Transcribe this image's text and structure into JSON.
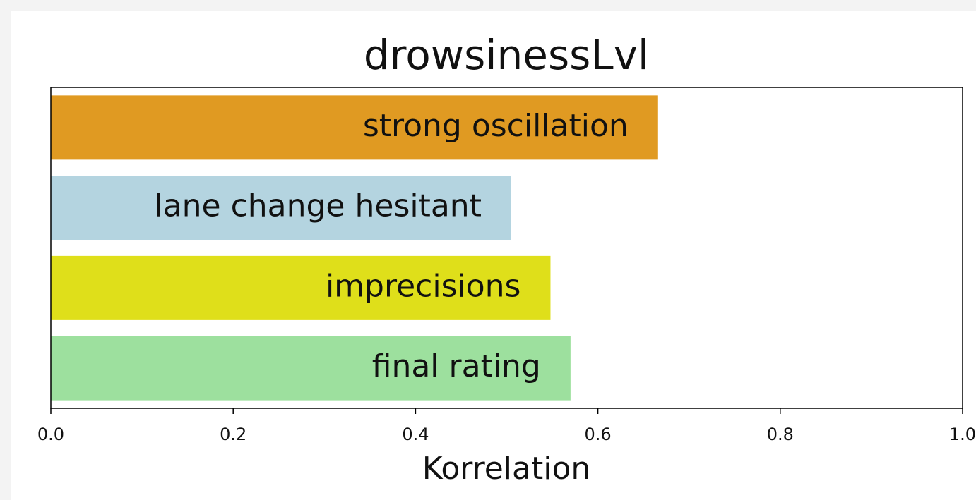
{
  "chart_data": {
    "type": "barh",
    "title": "drowsinessLvl",
    "x_label": "Korrelation",
    "categories": [
      "strong oscillation",
      "lane change hesitant",
      "imprecisions",
      "final rating"
    ],
    "values": [
      0.666,
      0.505,
      0.548,
      0.57
    ],
    "colors": [
      "#e09a22",
      "#b4d4e0",
      "#dfdf1a",
      "#9de09e"
    ],
    "xlim": [
      0,
      1
    ],
    "xticks": [
      {
        "value": 0,
        "label": "0.0"
      },
      0.2,
      0.4,
      0.6,
      0.8,
      {
        "value": 1,
        "label": "1.0"
      }
    ]
  }
}
